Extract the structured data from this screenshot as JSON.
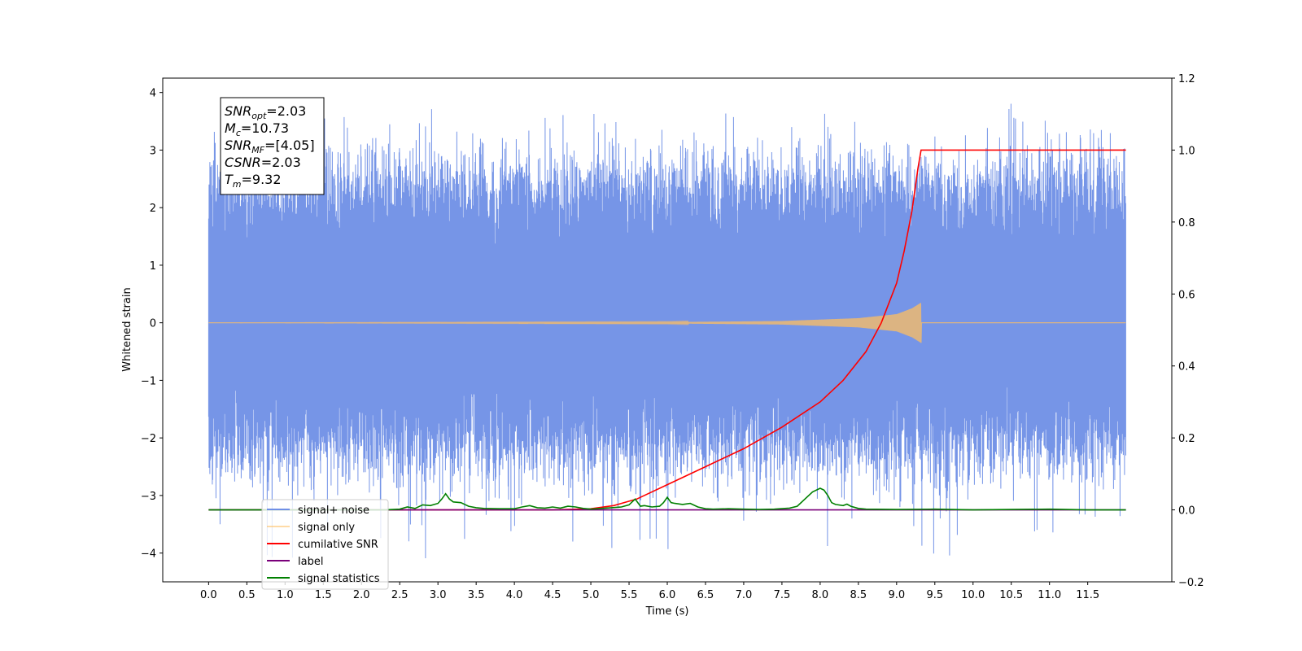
{
  "chart_data": {
    "type": "line",
    "xlabel": "Time (s)",
    "ylabel": "Whitened strain",
    "xlim": [
      -0.6,
      12.6
    ],
    "ylim": [
      -4.5,
      4.25
    ],
    "y2lim": [
      -0.2,
      1.2
    ],
    "xticks": [
      "0.0",
      "0.5",
      "1.0",
      "1.5",
      "2.0",
      "2.5",
      "3.0",
      "3.5",
      "4.0",
      "4.5",
      "5.0",
      "5.5",
      "6.0",
      "6.5",
      "7.0",
      "7.5",
      "8.0",
      "8.5",
      "9.0",
      "9.5",
      "10.0",
      "10.5",
      "11.0",
      "11.5"
    ],
    "yticks": [
      "4",
      "3",
      "2",
      "1",
      "0",
      "−1",
      "−2",
      "−3",
      "−4"
    ],
    "y2ticks": [
      "1.2",
      "1.0",
      "0.8",
      "0.6",
      "0.4",
      "0.2",
      "0.0",
      "−0.2"
    ],
    "grid": false,
    "legend_placement": "lower-left",
    "annotation": {
      "lines": [
        {
          "sym": "SNR",
          "sub": "opt",
          "value": "=2.03"
        },
        {
          "sym": "M",
          "sub": "c",
          "value": "=10.73"
        },
        {
          "sym": "SNR",
          "sub": "MF",
          "value": "=[4.05]"
        },
        {
          "sym": "CSNR",
          "sub": "",
          "value": "=2.03"
        },
        {
          "sym": "T",
          "sub": "m",
          "value": "=9.32"
        }
      ]
    },
    "series": [
      {
        "name": "signal+ noise",
        "color": "#6f8fe6",
        "axis": "left",
        "kind": "noise",
        "x_range": [
          0.0,
          12.0
        ],
        "envelope_typical": [
          -2.0,
          2.2
        ],
        "spike_range": [
          -4.1,
          3.9
        ]
      },
      {
        "name": "signal only",
        "color": "#ffbf60",
        "axis": "left",
        "kind": "chirp",
        "x_range": [
          0.0,
          12.0
        ],
        "merger_time": 9.32,
        "amplitude_envelope": {
          "x": [
            0.0,
            6.0,
            7.5,
            8.5,
            9.0,
            9.2,
            9.32
          ],
          "y": [
            0.0,
            0.01,
            0.03,
            0.08,
            0.15,
            0.25,
            0.35
          ]
        }
      },
      {
        "name": "cumilative SNR",
        "color": "#ff0000",
        "axis": "right",
        "x": [
          0.0,
          4.5,
          5.0,
          5.3,
          5.6,
          6.0,
          6.5,
          7.0,
          7.5,
          8.0,
          8.3,
          8.6,
          8.8,
          9.0,
          9.1,
          9.2,
          9.28,
          9.32,
          12.0
        ],
        "y": [
          0.0,
          0.0,
          0.003,
          0.012,
          0.03,
          0.07,
          0.12,
          0.17,
          0.23,
          0.3,
          0.36,
          0.44,
          0.52,
          0.63,
          0.72,
          0.83,
          0.95,
          1.0,
          1.0
        ]
      },
      {
        "name": "label",
        "color": "#7a007a",
        "axis": "right",
        "x": [
          0.0,
          12.0
        ],
        "y": [
          0.0,
          0.0
        ]
      },
      {
        "name": "signal statistics",
        "color": "#008000",
        "axis": "right",
        "x": [
          0.0,
          2.3,
          2.5,
          2.6,
          2.7,
          2.8,
          2.9,
          3.0,
          3.05,
          3.1,
          3.15,
          3.2,
          3.3,
          3.4,
          3.5,
          3.6,
          3.8,
          4.0,
          4.1,
          4.2,
          4.3,
          4.4,
          4.5,
          4.6,
          4.7,
          4.8,
          4.9,
          5.0,
          5.2,
          5.4,
          5.5,
          5.58,
          5.65,
          5.7,
          5.8,
          5.9,
          5.95,
          6.0,
          6.05,
          6.1,
          6.2,
          6.3,
          6.4,
          6.5,
          6.6,
          6.8,
          7.0,
          7.2,
          7.4,
          7.6,
          7.7,
          7.8,
          7.9,
          8.0,
          8.05,
          8.1,
          8.15,
          8.2,
          8.3,
          8.35,
          8.4,
          8.5,
          8.6,
          9.0,
          9.5,
          10.0,
          10.5,
          11.0,
          11.5,
          12.0
        ],
        "y": [
          0.0,
          0.0,
          0.002,
          0.008,
          0.004,
          0.014,
          0.012,
          0.018,
          0.03,
          0.045,
          0.03,
          0.022,
          0.02,
          0.01,
          0.006,
          0.004,
          0.003,
          0.003,
          0.008,
          0.012,
          0.006,
          0.005,
          0.008,
          0.005,
          0.01,
          0.008,
          0.004,
          0.002,
          0.005,
          0.008,
          0.014,
          0.03,
          0.01,
          0.012,
          0.008,
          0.01,
          0.02,
          0.035,
          0.02,
          0.018,
          0.015,
          0.018,
          0.008,
          0.003,
          0.002,
          0.003,
          0.002,
          0.001,
          0.002,
          0.005,
          0.01,
          0.03,
          0.05,
          0.06,
          0.055,
          0.04,
          0.02,
          0.015,
          0.012,
          0.016,
          0.01,
          0.004,
          0.002,
          0.001,
          0.002,
          0.0,
          0.001,
          0.002,
          0.0,
          0.0
        ]
      }
    ]
  }
}
